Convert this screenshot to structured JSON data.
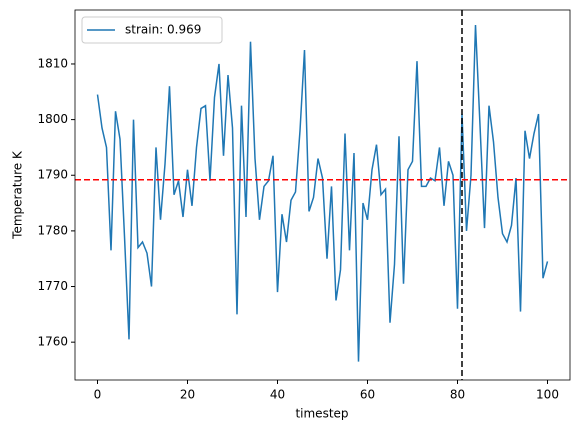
{
  "chart_data": {
    "type": "line",
    "xlabel": "timestep",
    "ylabel": "Temperature K",
    "x": [
      0,
      1,
      2,
      3,
      4,
      5,
      6,
      7,
      8,
      9,
      10,
      11,
      12,
      13,
      14,
      15,
      16,
      17,
      18,
      19,
      20,
      21,
      22,
      23,
      24,
      25,
      26,
      27,
      28,
      29,
      30,
      31,
      32,
      33,
      34,
      35,
      36,
      37,
      38,
      39,
      40,
      41,
      42,
      43,
      44,
      45,
      46,
      47,
      48,
      49,
      50,
      51,
      52,
      53,
      54,
      55,
      56,
      57,
      58,
      59,
      60,
      61,
      62,
      63,
      64,
      65,
      66,
      67,
      68,
      69,
      70,
      71,
      72,
      73,
      74,
      75,
      76,
      77,
      78,
      79,
      80,
      81,
      82,
      83,
      84,
      85,
      86,
      87,
      88,
      89,
      90,
      91,
      92,
      93,
      94,
      95,
      96,
      97,
      98,
      99,
      100
    ],
    "series": [
      {
        "name": "strain: 0.969",
        "color": "#1f77b4",
        "values": [
          1804.5,
          1798.5,
          1795,
          1776.5,
          1801.5,
          1796.5,
          1779,
          1760.5,
          1800,
          1777,
          1778,
          1776,
          1770,
          1795,
          1782,
          1792,
          1806,
          1786.5,
          1789,
          1782.5,
          1791,
          1784.5,
          1795,
          1802,
          1802.5,
          1789,
          1804,
          1810,
          1793.5,
          1808,
          1798.5,
          1765,
          1802.5,
          1782.5,
          1814,
          1793,
          1782,
          1788,
          1789,
          1793.5,
          1769,
          1783,
          1778,
          1785.5,
          1787,
          1798,
          1812.5,
          1783.5,
          1786,
          1793,
          1789.5,
          1775,
          1788,
          1767.5,
          1773,
          1797.5,
          1776.5,
          1794,
          1756.5,
          1785,
          1782,
          1791,
          1795.5,
          1786.5,
          1787.5,
          1763.5,
          1774,
          1797,
          1770.5,
          1791,
          1792.5,
          1810.5,
          1788,
          1788,
          1789.5,
          1789,
          1795,
          1784.5,
          1792.5,
          1790,
          1766,
          1801,
          1780,
          1790,
          1817,
          1799,
          1780.5,
          1802.5,
          1796,
          1786,
          1779.5,
          1778,
          1781,
          1789.5,
          1765.5,
          1798,
          1793,
          1797.5,
          1801,
          1771.5,
          1774.5
        ]
      }
    ],
    "hline": {
      "value": 1789.2,
      "color": "red"
    },
    "vline": {
      "value": 81,
      "color": "black"
    },
    "xlim": [
      -5,
      105
    ],
    "xticks": [
      0,
      20,
      40,
      60,
      80,
      100
    ],
    "ylim": [
      1753.2,
      1819.7
    ],
    "yticks": [
      1760,
      1770,
      1780,
      1790,
      1800,
      1810
    ],
    "legend": "upper left"
  }
}
